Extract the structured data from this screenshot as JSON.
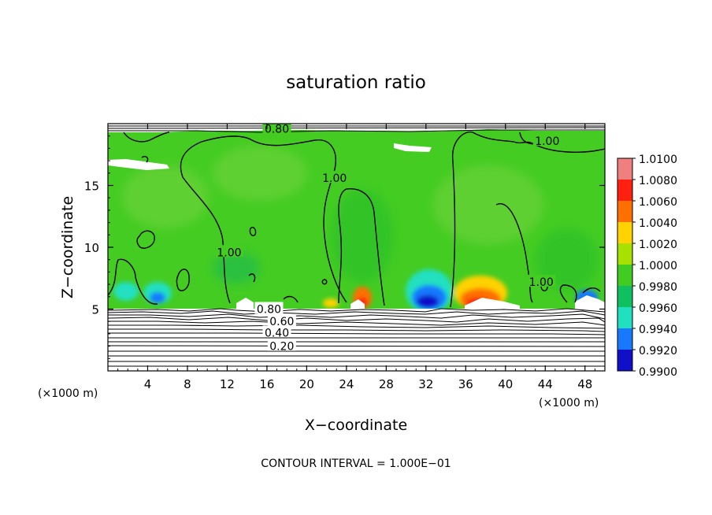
{
  "chart_data": {
    "type": "heatmap",
    "title": "saturation ratio",
    "xlabel": "X−coordinate",
    "ylabel": "Z−coordinate",
    "x_unit_left": "(×1000 m)",
    "x_unit_right": "(×1000 m)",
    "xlim": [
      0,
      50
    ],
    "ylim": [
      0,
      20
    ],
    "x_ticks": [
      4,
      8,
      12,
      16,
      20,
      24,
      28,
      32,
      36,
      40,
      44,
      48
    ],
    "x_tick_labels": [
      "4",
      "8",
      "12",
      "16",
      "20",
      "24",
      "28",
      "32",
      "36",
      "40",
      "44",
      "48"
    ],
    "y_ticks": [
      5,
      10,
      15
    ],
    "y_tick_labels": [
      "5",
      "10",
      "15"
    ],
    "colorbar": {
      "range": [
        0.99,
        1.01
      ],
      "labels": [
        "1.0100",
        "1.0080",
        "1.0060",
        "1.0040",
        "1.0020",
        "1.0000",
        "0.9980",
        "0.9960",
        "0.9940",
        "0.9920",
        "0.9900"
      ],
      "colors": [
        "#f08080",
        "#ff2010",
        "#ff7000",
        "#ffd200",
        "#a8e000",
        "#40cc20",
        "#10c060",
        "#20e0c0",
        "#1878ff",
        "#1010c8",
        "#6a1090"
      ]
    },
    "contour_labels": [
      {
        "text": "0.80",
        "x": 17.0,
        "z": 19.6
      },
      {
        "text": "1.00",
        "x": 44.2,
        "z": 18.6
      },
      {
        "text": "1.00",
        "x": 22.8,
        "z": 15.6
      },
      {
        "text": "1.00",
        "x": 12.2,
        "z": 9.6
      },
      {
        "text": "1.00",
        "x": 43.6,
        "z": 7.2
      },
      {
        "text": "0.80",
        "x": 16.2,
        "z": 5.0
      },
      {
        "text": "0.60",
        "x": 17.5,
        "z": 4.0
      },
      {
        "text": "0.40",
        "x": 17.0,
        "z": 3.1
      },
      {
        "text": "0.20",
        "x": 17.5,
        "z": 2.0
      }
    ],
    "contour_interval_text": "CONTOUR INTERVAL = 1.000E−01"
  }
}
